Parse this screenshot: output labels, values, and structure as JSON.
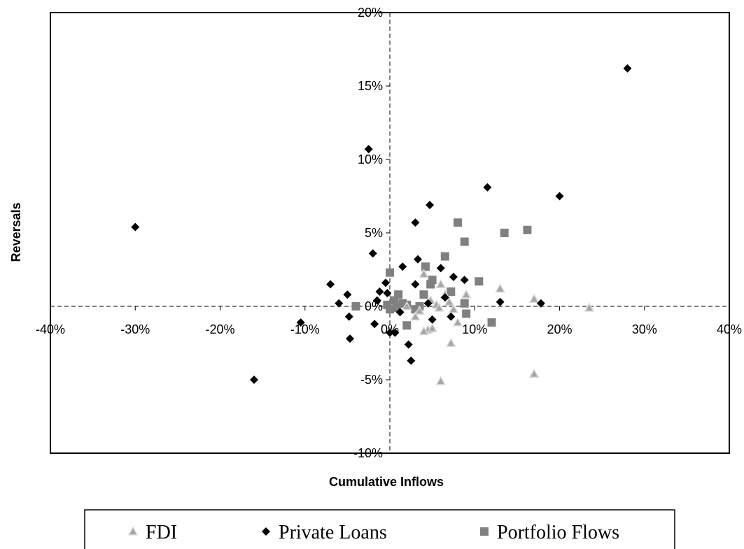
{
  "chart_data": {
    "type": "scatter",
    "title": "",
    "xlabel": "Cumulative Inflows",
    "ylabel": "Reversals",
    "xlim": [
      -0.4,
      0.4
    ],
    "ylim": [
      -0.1,
      0.2
    ],
    "x_ticks": [
      -0.4,
      -0.3,
      -0.2,
      -0.1,
      0,
      0.1,
      0.2,
      0.3,
      0.4
    ],
    "x_tick_labels": [
      "-40%",
      "-30%",
      "-20%",
      "-10%",
      "0%",
      "10%",
      "20%",
      "30%",
      "40%"
    ],
    "y_ticks": [
      -0.1,
      -0.05,
      0,
      0.05,
      0.1,
      0.15,
      0.2
    ],
    "y_tick_labels": [
      "-10%",
      "-5%",
      "0%",
      "5%",
      "10%",
      "15%",
      "20%"
    ],
    "grid": false,
    "legend": "bottom",
    "series": [
      {
        "name": "FDI",
        "marker": "triangle",
        "color": "#a6a6a6",
        "points": [
          [
            0.04,
            0.022
          ],
          [
            0.048,
            0.004
          ],
          [
            0.055,
            0.001
          ],
          [
            0.06,
            0.015
          ],
          [
            0.065,
            0.008
          ],
          [
            0.07,
            0.003
          ],
          [
            0.075,
            -0.002
          ],
          [
            0.08,
            -0.011
          ],
          [
            0.09,
            0.008
          ],
          [
            0.045,
            -0.016
          ],
          [
            0.05,
            -0.015
          ],
          [
            0.04,
            -0.017
          ],
          [
            0.072,
            -0.025
          ],
          [
            0.06,
            -0.051
          ],
          [
            0.13,
            0.012
          ],
          [
            0.17,
            0.005
          ],
          [
            0.235,
            -0.001
          ],
          [
            0.17,
            -0.046
          ],
          [
            0.02,
            0.0
          ],
          [
            0.03,
            -0.007
          ],
          [
            0.035,
            -0.003
          ],
          [
            0.058,
            -0.001
          ]
        ]
      },
      {
        "name": "Private Loans",
        "marker": "diamond",
        "color": "#000000",
        "points": [
          [
            0.28,
            0.162
          ],
          [
            -0.025,
            0.107
          ],
          [
            0.115,
            0.081
          ],
          [
            0.2,
            0.075
          ],
          [
            0.047,
            0.069
          ],
          [
            0.03,
            0.057
          ],
          [
            -0.3,
            0.054
          ],
          [
            -0.02,
            0.036
          ],
          [
            0.033,
            0.032
          ],
          [
            0.015,
            0.027
          ],
          [
            0.06,
            0.026
          ],
          [
            0.075,
            0.02
          ],
          [
            0.088,
            0.018
          ],
          [
            0.03,
            0.015
          ],
          [
            -0.07,
            0.015
          ],
          [
            -0.005,
            0.016
          ],
          [
            -0.012,
            0.01
          ],
          [
            -0.003,
            0.009
          ],
          [
            -0.05,
            0.008
          ],
          [
            -0.06,
            0.002
          ],
          [
            -0.015,
            0.004
          ],
          [
            0.045,
            0.002
          ],
          [
            0.065,
            0.006
          ],
          [
            0.13,
            0.003
          ],
          [
            0.178,
            0.002
          ],
          [
            -0.048,
            -0.007
          ],
          [
            -0.018,
            -0.012
          ],
          [
            0.012,
            -0.004
          ],
          [
            0.05,
            -0.009
          ],
          [
            0.072,
            -0.007
          ],
          [
            -0.105,
            -0.011
          ],
          [
            0.0,
            -0.018
          ],
          [
            0.006,
            -0.018
          ],
          [
            0.022,
            -0.026
          ],
          [
            -0.047,
            -0.022
          ],
          [
            0.025,
            -0.037
          ],
          [
            -0.16,
            -0.05
          ]
        ]
      },
      {
        "name": "Portfolio Flows",
        "marker": "square",
        "color": "#808080",
        "points": [
          [
            0.08,
            0.057
          ],
          [
            0.135,
            0.05
          ],
          [
            0.162,
            0.052
          ],
          [
            0.088,
            0.044
          ],
          [
            0.065,
            0.034
          ],
          [
            0.0,
            0.023
          ],
          [
            0.042,
            0.027
          ],
          [
            0.05,
            0.018
          ],
          [
            0.105,
            0.017
          ],
          [
            0.048,
            0.015
          ],
          [
            0.072,
            0.01
          ],
          [
            0.04,
            0.008
          ],
          [
            0.01,
            0.008
          ],
          [
            0.005,
            0.004
          ],
          [
            0.015,
            0.002
          ],
          [
            0.02,
            0.001
          ],
          [
            -0.003,
            0.001
          ],
          [
            -0.04,
            0.0
          ],
          [
            0.0,
            -0.002
          ],
          [
            0.008,
            -0.001
          ],
          [
            0.03,
            -0.002
          ],
          [
            0.035,
            0.0
          ],
          [
            0.088,
            0.002
          ],
          [
            0.09,
            -0.005
          ],
          [
            0.12,
            -0.011
          ],
          [
            0.02,
            -0.013
          ]
        ]
      }
    ]
  }
}
